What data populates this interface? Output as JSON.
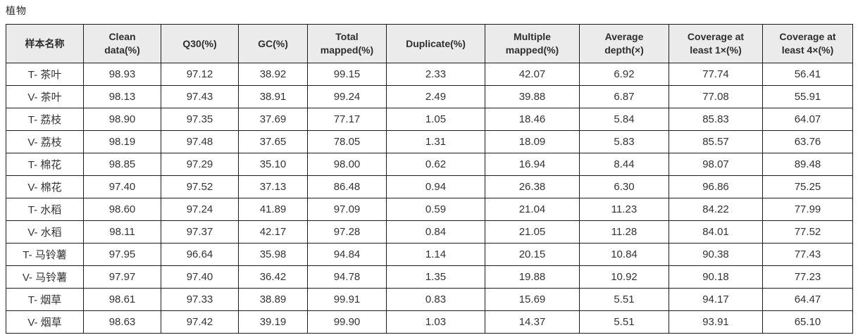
{
  "page": {
    "title": "植物"
  },
  "colors": {
    "header_bg": "#ebebeb",
    "border": "#1c1c1c",
    "text": "#333333"
  },
  "table": {
    "columns": [
      "样本名称",
      "Clean\ndata(%)",
      "Q30(%)",
      "GC(%)",
      "Total\nmapped(%)",
      "Duplicate(%)",
      "Multiple\nmapped(%)",
      "Average\ndepth(×)",
      "Coverage at\nleast 1×(%)",
      "Coverage at\nleast 4×(%)"
    ],
    "rows": [
      [
        "T- 茶叶",
        "98.93",
        "97.12",
        "38.92",
        "99.15",
        "2.33",
        "42.07",
        "6.92",
        "77.74",
        "56.41"
      ],
      [
        "V- 茶叶",
        "98.13",
        "97.43",
        "38.91",
        "99.24",
        "2.49",
        "39.88",
        "6.87",
        "77.08",
        "55.91"
      ],
      [
        "T- 荔枝",
        "98.90",
        "97.35",
        "37.69",
        "77.17",
        "1.05",
        "18.46",
        "5.84",
        "85.83",
        "64.07"
      ],
      [
        "V- 荔枝",
        "98.19",
        "97.48",
        "37.65",
        "78.05",
        "1.31",
        "18.09",
        "5.83",
        "85.57",
        "63.76"
      ],
      [
        "T- 棉花",
        "98.85",
        "97.29",
        "35.10",
        "98.00",
        "0.62",
        "16.94",
        "8.44",
        "98.07",
        "89.48"
      ],
      [
        "V- 棉花",
        "97.40",
        "97.52",
        "37.13",
        "86.48",
        "0.94",
        "26.38",
        "6.30",
        "96.86",
        "75.25"
      ],
      [
        "T- 水稻",
        "98.60",
        "97.24",
        "41.89",
        "97.09",
        "0.59",
        "21.04",
        "11.23",
        "84.22",
        "77.99"
      ],
      [
        "V- 水稻",
        "98.11",
        "97.37",
        "42.17",
        "97.28",
        "0.84",
        "21.05",
        "11.28",
        "84.01",
        "77.52"
      ],
      [
        "T- 马铃薯",
        "97.95",
        "96.64",
        "35.98",
        "94.84",
        "1.14",
        "20.15",
        "10.84",
        "90.38",
        "77.43"
      ],
      [
        "V- 马铃薯",
        "97.97",
        "97.40",
        "36.42",
        "94.78",
        "1.35",
        "19.88",
        "10.92",
        "90.18",
        "77.23"
      ],
      [
        "T- 烟草",
        "98.61",
        "97.33",
        "38.89",
        "99.91",
        "0.83",
        "15.69",
        "5.51",
        "94.17",
        "64.47"
      ],
      [
        "V- 烟草",
        "98.63",
        "97.42",
        "39.19",
        "99.90",
        "1.03",
        "14.37",
        "5.51",
        "93.91",
        "65.10"
      ]
    ]
  }
}
